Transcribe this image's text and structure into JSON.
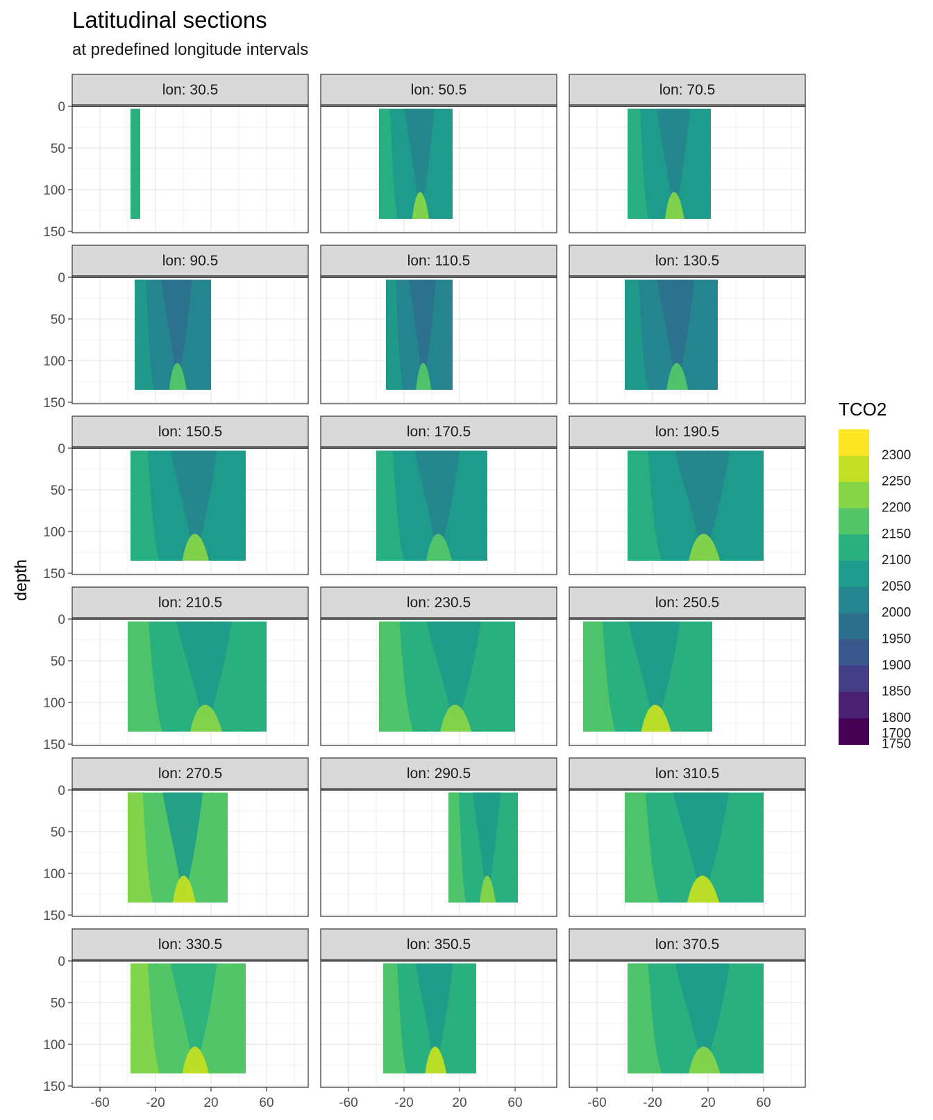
{
  "chart_data": {
    "type": "filled-contour-facets",
    "title": "Latitudinal sections",
    "subtitle": "at predefined longitude intervals",
    "ylabel": "depth",
    "xlabel": "",
    "y_reversed": true,
    "xlim": [
      -80,
      90
    ],
    "ylim": [
      0,
      150
    ],
    "x_ticks": [
      -60,
      -20,
      20,
      60
    ],
    "y_ticks": [
      0,
      50,
      100,
      150
    ],
    "grid": true,
    "legend": {
      "title": "TCO2",
      "position": "right",
      "breaks": [
        2300,
        2250,
        2200,
        2150,
        2100,
        2050,
        2000,
        1950,
        1900,
        1850,
        1800,
        1750,
        1700
      ],
      "colors": [
        "#fde725",
        "#c2df23",
        "#86d549",
        "#52c569",
        "#2ab07f",
        "#1e9b8a",
        "#25858e",
        "#2d708e",
        "#38588c",
        "#433e85",
        "#482173",
        "#440154"
      ]
    },
    "facets": [
      {
        "label": "lon: 30.5",
        "lat_range": [
          -38,
          -31
        ],
        "depth_max": 135,
        "dominant": 2080
      },
      {
        "label": "lon: 50.5",
        "lat_range": [
          -38,
          15
        ],
        "depth_max": 135,
        "dominant": 2030
      },
      {
        "label": "lon: 70.5",
        "lat_range": [
          -38,
          22
        ],
        "depth_max": 135,
        "dominant": 2040
      },
      {
        "label": "lon: 90.5",
        "lat_range": [
          -35,
          20
        ],
        "depth_max": 135,
        "dominant": 1980
      },
      {
        "label": "lon: 110.5",
        "lat_range": [
          -33,
          15
        ],
        "depth_max": 135,
        "dominant": 1990
      },
      {
        "label": "lon: 130.5",
        "lat_range": [
          -40,
          27
        ],
        "depth_max": 135,
        "dominant": 1990
      },
      {
        "label": "lon: 150.5",
        "lat_range": [
          -38,
          45
        ],
        "depth_max": 135,
        "dominant": 2030
      },
      {
        "label": "lon: 170.5",
        "lat_range": [
          -40,
          40
        ],
        "depth_max": 135,
        "dominant": 2010
      },
      {
        "label": "lon: 190.5",
        "lat_range": [
          -38,
          60
        ],
        "depth_max": 135,
        "dominant": 2030
      },
      {
        "label": "lon: 210.5",
        "lat_range": [
          -40,
          60
        ],
        "depth_max": 135,
        "dominant": 2070
      },
      {
        "label": "lon: 230.5",
        "lat_range": [
          -38,
          60
        ],
        "depth_max": 135,
        "dominant": 2060
      },
      {
        "label": "lon: 250.5",
        "lat_range": [
          -70,
          23
        ],
        "depth_max": 135,
        "dominant": 2080
      },
      {
        "label": "lon: 270.5",
        "lat_range": [
          -40,
          32
        ],
        "depth_max": 135,
        "dominant": 2100
      },
      {
        "label": "lon: 290.5",
        "lat_range": [
          12,
          62
        ],
        "depth_max": 135,
        "dominant": 2060
      },
      {
        "label": "lon: 310.5",
        "lat_range": [
          -40,
          60
        ],
        "depth_max": 135,
        "dominant": 2080
      },
      {
        "label": "lon: 330.5",
        "lat_range": [
          -38,
          45
        ],
        "depth_max": 135,
        "dominant": 2110
      },
      {
        "label": "lon: 350.5",
        "lat_range": [
          -35,
          32
        ],
        "depth_max": 135,
        "dominant": 2080
      },
      {
        "label": "lon: 370.5",
        "lat_range": [
          -38,
          60
        ],
        "depth_max": 135,
        "dominant": 2060
      }
    ]
  }
}
